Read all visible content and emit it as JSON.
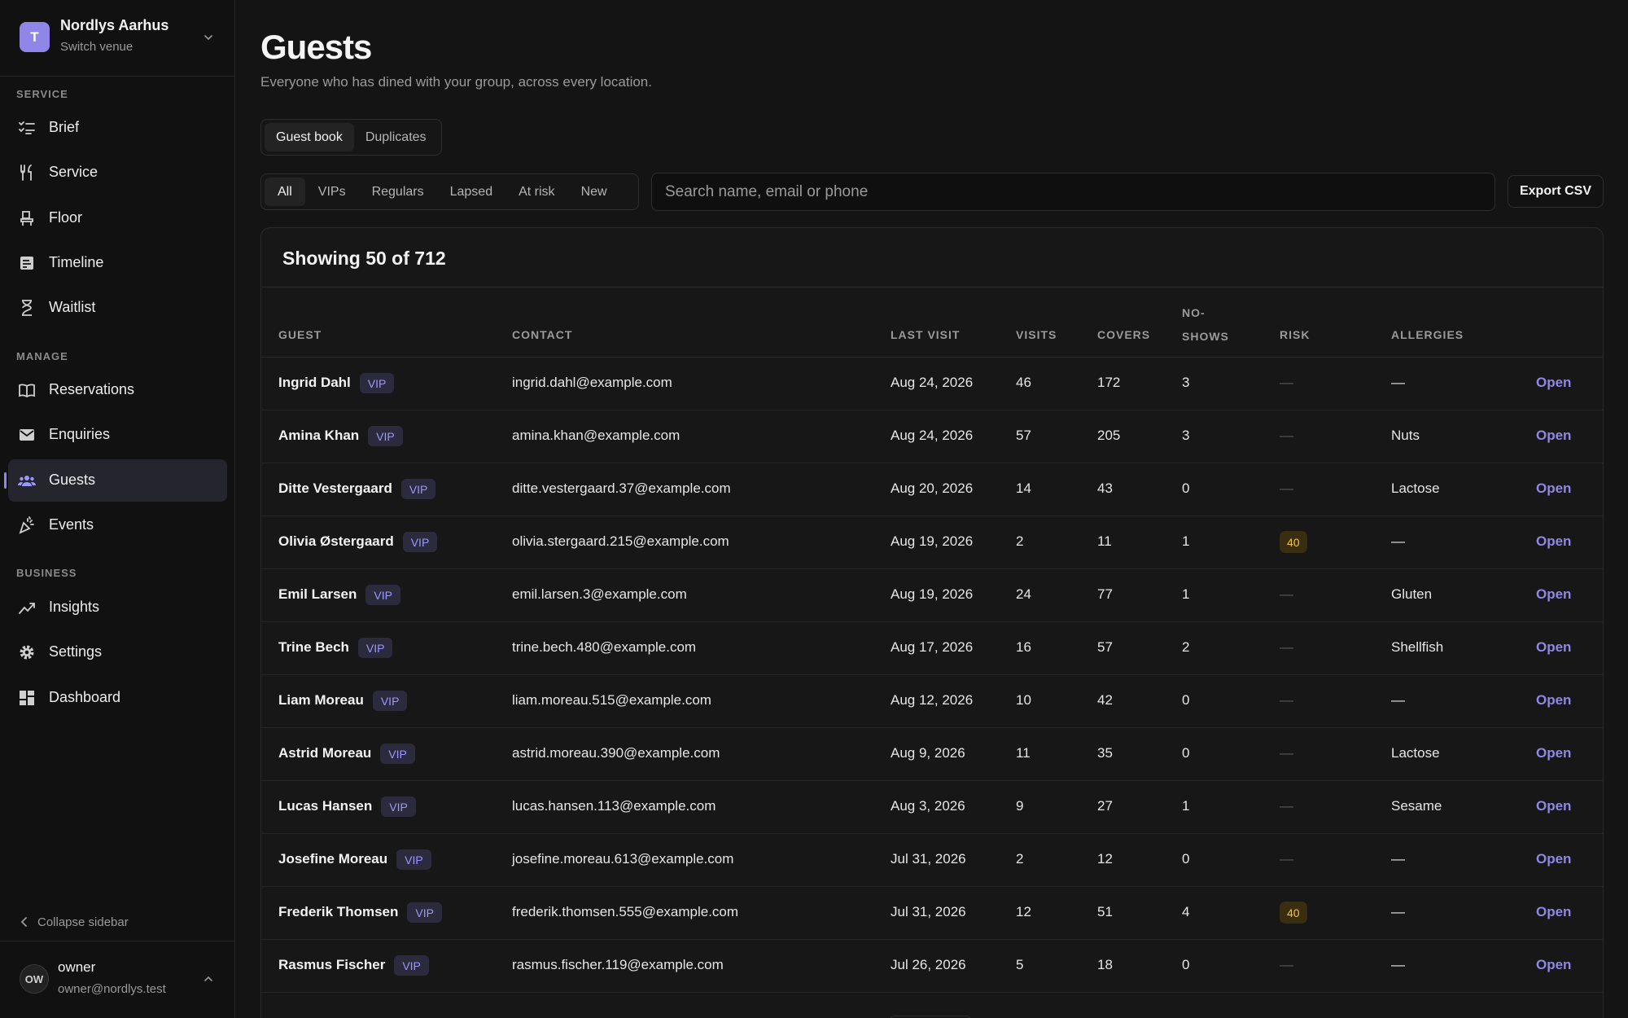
{
  "venue": {
    "initial": "T",
    "name": "Nordlys Aarhus",
    "subtitle": "Switch venue"
  },
  "sidebar": {
    "sections": [
      {
        "label": "SERVICE",
        "items": [
          {
            "label": "Brief",
            "icon": "checklist-icon"
          },
          {
            "label": "Service",
            "icon": "fork-knife-icon"
          },
          {
            "label": "Floor",
            "icon": "chair-icon"
          },
          {
            "label": "Timeline",
            "icon": "timeline-icon"
          },
          {
            "label": "Waitlist",
            "icon": "hourglass-icon"
          }
        ]
      },
      {
        "label": "MANAGE",
        "items": [
          {
            "label": "Reservations",
            "icon": "book-icon"
          },
          {
            "label": "Enquiries",
            "icon": "mail-icon"
          },
          {
            "label": "Guests",
            "icon": "people-icon",
            "active": true
          },
          {
            "label": "Events",
            "icon": "party-icon"
          }
        ]
      },
      {
        "label": "BUSINESS",
        "items": [
          {
            "label": "Insights",
            "icon": "trend-icon"
          },
          {
            "label": "Settings",
            "icon": "gear-icon"
          },
          {
            "label": "Dashboard",
            "icon": "dashboard-icon"
          }
        ]
      }
    ],
    "collapse_label": "Collapse sidebar"
  },
  "user": {
    "initials": "OW",
    "name": "owner",
    "email": "owner@nordlys.test"
  },
  "page": {
    "title": "Guests",
    "subtitle": "Everyone who has dined with your group, across every location."
  },
  "tabs": [
    {
      "label": "Guest book",
      "active": true
    },
    {
      "label": "Duplicates"
    }
  ],
  "filters": [
    {
      "label": "All",
      "active": true
    },
    {
      "label": "VIPs"
    },
    {
      "label": "Regulars"
    },
    {
      "label": "Lapsed"
    },
    {
      "label": "At risk"
    },
    {
      "label": "New"
    }
  ],
  "search": {
    "placeholder": "Search name, email or phone",
    "value": ""
  },
  "export_label": "Export CSV",
  "table": {
    "summary": "Showing 50 of 712",
    "headers": {
      "guest": "GUEST",
      "contact": "CONTACT",
      "last_visit": "LAST VISIT",
      "visits": "VISITS",
      "covers": "COVERS",
      "no_shows": "NO-SHOWS",
      "risk": "RISK",
      "allergies": "ALLERGIES"
    },
    "vip_label": "VIP",
    "open_label": "Open",
    "rows": [
      {
        "name": "Ingrid Dahl",
        "email": "ingrid.dahl@example.com",
        "last_visit": "Aug 24, 2026",
        "visits": "46",
        "covers": "172",
        "no_shows": "3",
        "risk": "—",
        "allergies": "—"
      },
      {
        "name": "Amina Khan",
        "email": "amina.khan@example.com",
        "last_visit": "Aug 24, 2026",
        "visits": "57",
        "covers": "205",
        "no_shows": "3",
        "risk": "—",
        "allergies": "Nuts"
      },
      {
        "name": "Ditte Vestergaard",
        "email": "ditte.vestergaard.37@example.com",
        "last_visit": "Aug 20, 2026",
        "visits": "14",
        "covers": "43",
        "no_shows": "0",
        "risk": "—",
        "allergies": "Lactose"
      },
      {
        "name": "Olivia Østergaard",
        "email": "olivia.stergaard.215@example.com",
        "last_visit": "Aug 19, 2026",
        "visits": "2",
        "covers": "11",
        "no_shows": "1",
        "risk": "40",
        "allergies": "—"
      },
      {
        "name": "Emil Larsen",
        "email": "emil.larsen.3@example.com",
        "last_visit": "Aug 19, 2026",
        "visits": "24",
        "covers": "77",
        "no_shows": "1",
        "risk": "—",
        "allergies": "Gluten"
      },
      {
        "name": "Trine Bech",
        "email": "trine.bech.480@example.com",
        "last_visit": "Aug 17, 2026",
        "visits": "16",
        "covers": "57",
        "no_shows": "2",
        "risk": "—",
        "allergies": "Shellfish"
      },
      {
        "name": "Liam Moreau",
        "email": "liam.moreau.515@example.com",
        "last_visit": "Aug 12, 2026",
        "visits": "10",
        "covers": "42",
        "no_shows": "0",
        "risk": "—",
        "allergies": "—"
      },
      {
        "name": "Astrid Moreau",
        "email": "astrid.moreau.390@example.com",
        "last_visit": "Aug 9, 2026",
        "visits": "11",
        "covers": "35",
        "no_shows": "0",
        "risk": "—",
        "allergies": "Lactose"
      },
      {
        "name": "Lucas Hansen",
        "email": "lucas.hansen.113@example.com",
        "last_visit": "Aug 3, 2026",
        "visits": "9",
        "covers": "27",
        "no_shows": "1",
        "risk": "—",
        "allergies": "Sesame"
      },
      {
        "name": "Josefine Moreau",
        "email": "josefine.moreau.613@example.com",
        "last_visit": "Jul 31, 2026",
        "visits": "2",
        "covers": "12",
        "no_shows": "0",
        "risk": "—",
        "allergies": "—"
      },
      {
        "name": "Frederik Thomsen",
        "email": "frederik.thomsen.555@example.com",
        "last_visit": "Jul 31, 2026",
        "visits": "12",
        "covers": "51",
        "no_shows": "4",
        "risk": "40",
        "allergies": "—"
      },
      {
        "name": "Rasmus Fischer",
        "email": "rasmus.fischer.119@example.com",
        "last_visit": "Jul 26, 2026",
        "visits": "5",
        "covers": "18",
        "no_shows": "0",
        "risk": "—",
        "allergies": "—"
      }
    ]
  },
  "colors": {
    "accent": "#8f86e8",
    "risk_badge": "#f1c04a",
    "background": "#141414"
  }
}
